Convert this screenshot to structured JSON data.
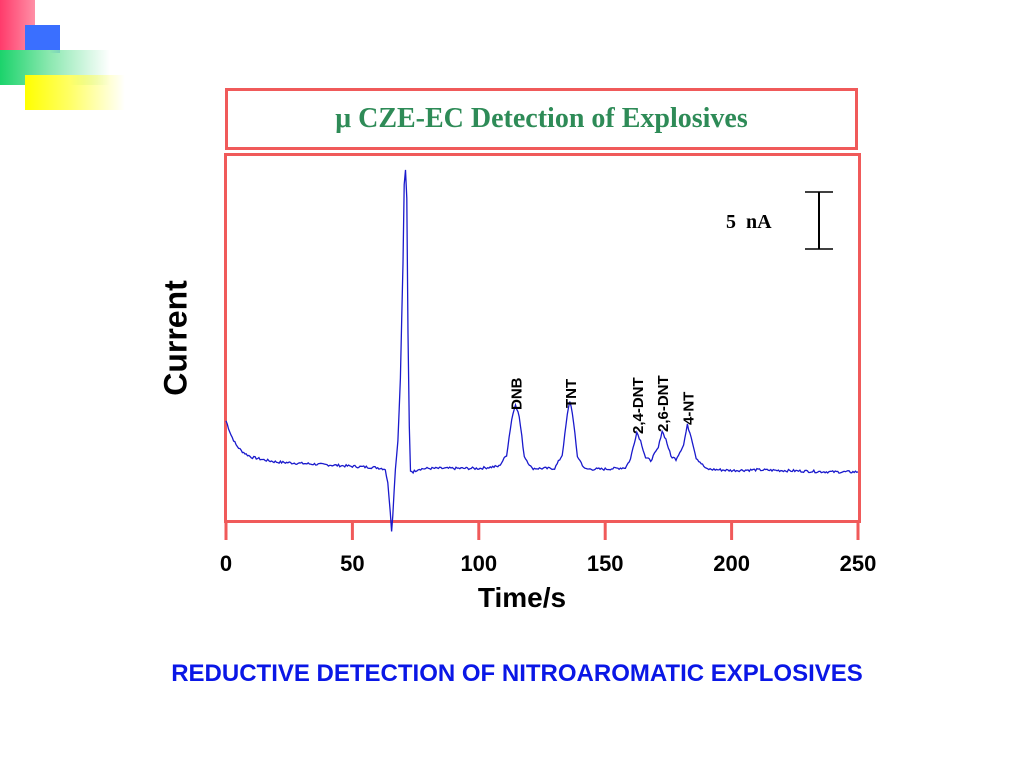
{
  "chart_data": {
    "type": "line",
    "title": "μ CZE-EC Detection of Explosives",
    "xlabel": "Time/s",
    "ylabel": "Current",
    "xlim": [
      0,
      250
    ],
    "x_ticks": [
      0,
      50,
      100,
      150,
      200,
      250
    ],
    "x_tick_labels": [
      "0",
      "50",
      "100",
      "150",
      "200",
      "250"
    ],
    "scale_bar_label": "5  nA",
    "grid": false,
    "line_color": "#1a1acc",
    "peaks": [
      {
        "label": "DNB",
        "time": 114.5
      },
      {
        "label": "TNT",
        "time": 136
      },
      {
        "label": "2,4-DNT",
        "time": 162.5
      },
      {
        "label": "2,6-DNT",
        "time": 172.5
      },
      {
        "label": "4-NT",
        "time": 182.5
      }
    ],
    "series": [
      {
        "x": [
          0,
          1,
          2,
          4,
          6,
          8,
          10,
          15,
          20,
          30,
          40,
          50,
          55,
          60,
          63,
          64,
          65,
          65.5,
          66,
          66.5,
          67,
          68,
          69,
          70,
          70.5,
          71,
          71.5,
          72,
          72.5,
          73,
          74,
          76,
          80,
          90,
          100,
          108,
          111,
          113,
          114.5,
          116,
          118,
          121,
          130,
          133,
          135,
          136,
          137,
          139,
          142,
          150,
          158,
          160,
          161,
          162.5,
          164,
          166,
          168,
          171,
          172.5,
          174,
          176,
          178,
          181,
          182.5,
          184,
          186,
          190,
          200,
          210,
          220,
          230,
          240,
          250
        ],
        "y": [
          2.9,
          2.4,
          1.9,
          1.2,
          0.8,
          0.55,
          0.35,
          0.15,
          0.0,
          -0.1,
          -0.2,
          -0.3,
          -0.35,
          -0.4,
          -0.5,
          -1.5,
          -3.5,
          -4.8,
          -3.8,
          -2.0,
          -0.5,
          1.5,
          6.0,
          14.0,
          19.5,
          20.6,
          18.5,
          9.0,
          2.5,
          -0.6,
          -0.7,
          -0.5,
          -0.45,
          -0.45,
          -0.45,
          -0.3,
          0.5,
          3.0,
          4.1,
          3.2,
          0.4,
          -0.45,
          -0.45,
          0.5,
          3.3,
          4.3,
          3.5,
          0.4,
          -0.5,
          -0.5,
          -0.4,
          0.2,
          1.0,
          2.1,
          1.5,
          0.3,
          0.1,
          1.0,
          2.2,
          1.6,
          0.4,
          0.2,
          1.2,
          2.6,
          1.8,
          0.3,
          -0.5,
          -0.6,
          -0.55,
          -0.6,
          -0.65,
          -0.7,
          -0.7
        ]
      }
    ]
  },
  "footer": "REDUCTIVE DETECTION OF NITROAROMATIC EXPLOSIVES"
}
